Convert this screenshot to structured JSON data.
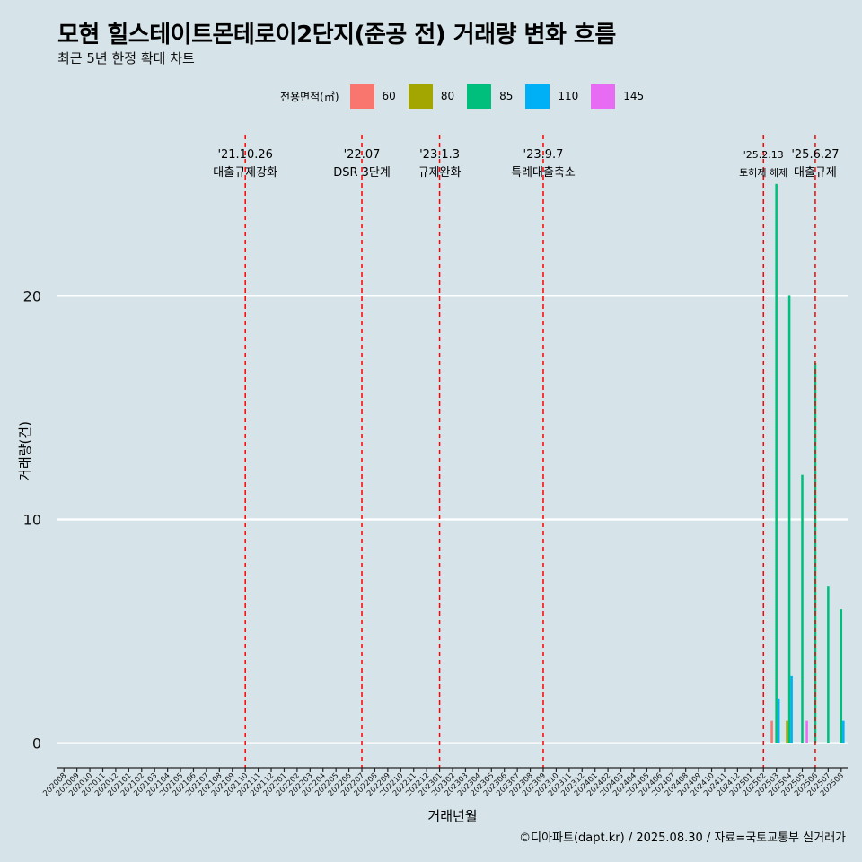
{
  "title": "모현 힐스테이트몬테로이2단지(준공 전) 거래량 변화 흐름",
  "subtitle": "최근 5년 한정 확대 차트",
  "caption": "©디아파트(dapt.kr) / 2025.08.30 / 자료=국토교통부 실거래가",
  "chart_data": {
    "type": "bar",
    "xlabel": "거래년월",
    "ylabel": "거래량(건)",
    "ylim": [
      -1.1,
      27.2
    ],
    "yticks": [
      0,
      10,
      20
    ],
    "legend_title": "전용면적(㎡)",
    "legend_position": "top",
    "categories": [
      "202008",
      "202009",
      "202010",
      "202011",
      "202012",
      "202101",
      "202102",
      "202103",
      "202104",
      "202105",
      "202106",
      "202107",
      "202108",
      "202109",
      "202110",
      "202111",
      "202112",
      "202201",
      "202202",
      "202203",
      "202204",
      "202205",
      "202206",
      "202207",
      "202208",
      "202209",
      "202210",
      "202211",
      "202212",
      "202301",
      "202302",
      "202303",
      "202304",
      "202305",
      "202306",
      "202307",
      "202308",
      "202309",
      "202310",
      "202311",
      "202312",
      "202401",
      "202402",
      "202403",
      "202404",
      "202405",
      "202406",
      "202407",
      "202408",
      "202409",
      "202410",
      "202411",
      "202412",
      "202501",
      "202502",
      "202503",
      "202504",
      "202505",
      "202506",
      "202507",
      "202508"
    ],
    "series": [
      {
        "name": "60",
        "color": "#F8766D",
        "values": [
          0,
          0,
          0,
          0,
          0,
          0,
          0,
          0,
          0,
          0,
          0,
          0,
          0,
          0,
          0,
          0,
          0,
          0,
          0,
          0,
          0,
          0,
          0,
          0,
          0,
          0,
          0,
          0,
          0,
          0,
          0,
          0,
          0,
          0,
          0,
          0,
          0,
          0,
          0,
          0,
          0,
          0,
          0,
          0,
          0,
          0,
          0,
          0,
          0,
          0,
          0,
          0,
          0,
          0,
          0,
          1,
          0,
          0,
          0,
          0,
          0
        ]
      },
      {
        "name": "80",
        "color": "#A3A500",
        "values": [
          0,
          0,
          0,
          0,
          0,
          0,
          0,
          0,
          0,
          0,
          0,
          0,
          0,
          0,
          0,
          0,
          0,
          0,
          0,
          0,
          0,
          0,
          0,
          0,
          0,
          0,
          0,
          0,
          0,
          0,
          0,
          0,
          0,
          0,
          0,
          0,
          0,
          0,
          0,
          0,
          0,
          0,
          0,
          0,
          0,
          0,
          0,
          0,
          0,
          0,
          0,
          0,
          0,
          0,
          0,
          0,
          1,
          0,
          0,
          0,
          0
        ]
      },
      {
        "name": "85",
        "color": "#00BF7D",
        "values": [
          0,
          0,
          0,
          0,
          0,
          0,
          0,
          0,
          0,
          0,
          0,
          0,
          0,
          0,
          0,
          0,
          0,
          0,
          0,
          0,
          0,
          0,
          0,
          0,
          0,
          0,
          0,
          0,
          0,
          0,
          0,
          0,
          0,
          0,
          0,
          0,
          0,
          0,
          0,
          0,
          0,
          0,
          0,
          0,
          0,
          0,
          0,
          0,
          0,
          0,
          0,
          0,
          0,
          0,
          0,
          25,
          20,
          12,
          17,
          7,
          6
        ]
      },
      {
        "name": "110",
        "color": "#00B0F6",
        "values": [
          0,
          0,
          0,
          0,
          0,
          0,
          0,
          0,
          0,
          0,
          0,
          0,
          0,
          0,
          0,
          0,
          0,
          0,
          0,
          0,
          0,
          0,
          0,
          0,
          0,
          0,
          0,
          0,
          0,
          0,
          0,
          0,
          0,
          0,
          0,
          0,
          0,
          0,
          0,
          0,
          0,
          0,
          0,
          0,
          0,
          0,
          0,
          0,
          0,
          0,
          0,
          0,
          0,
          0,
          0,
          2,
          3,
          0,
          0,
          0,
          1
        ]
      },
      {
        "name": "145",
        "color": "#E76BF3",
        "values": [
          0,
          0,
          0,
          0,
          0,
          0,
          0,
          0,
          0,
          0,
          0,
          0,
          0,
          0,
          0,
          0,
          0,
          0,
          0,
          0,
          0,
          0,
          0,
          0,
          0,
          0,
          0,
          0,
          0,
          0,
          0,
          0,
          0,
          0,
          0,
          0,
          0,
          0,
          0,
          0,
          0,
          0,
          0,
          0,
          0,
          0,
          0,
          0,
          0,
          0,
          0,
          0,
          0,
          0,
          0,
          0,
          0,
          1,
          0,
          0,
          0
        ]
      }
    ],
    "annotations": [
      {
        "date": "'21.10.26",
        "label": "대출규제강화",
        "x": "202110"
      },
      {
        "date": "'22.07",
        "label": "DSR 3단계",
        "x": "202207"
      },
      {
        "date": "'23.1.3",
        "label": "규제완화",
        "x": "202301"
      },
      {
        "date": "'23.9.7",
        "label": "특례대출축소",
        "x": "202309"
      },
      {
        "date": "'25.2.13",
        "label": "토허제 해제",
        "x": "202502"
      },
      {
        "date": "'25.6.27",
        "label": "대출규제",
        "x": "202506"
      }
    ]
  }
}
